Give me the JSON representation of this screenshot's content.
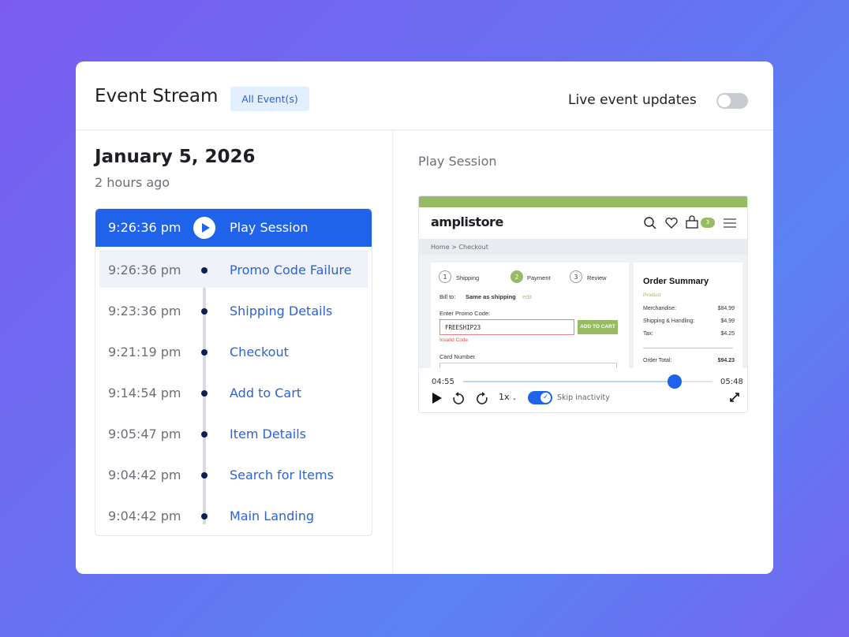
{
  "header": {
    "title": "Event Stream",
    "filter_chip": "All Event(s)",
    "live_label": "Live event updates",
    "live_enabled": false
  },
  "session": {
    "date": "January 5, 2026",
    "relative": "2 hours ago"
  },
  "events": [
    {
      "time": "9:26:36 pm",
      "label": "Play Session",
      "active": true
    },
    {
      "time": "9:26:36 pm",
      "label": "Promo Code Failure",
      "selected": true
    },
    {
      "time": "9:23:36 pm",
      "label": "Shipping Details"
    },
    {
      "time": "9:21:19 pm",
      "label": "Checkout"
    },
    {
      "time": "9:14:54 pm",
      "label": "Add to Cart"
    },
    {
      "time": "9:05:47 pm",
      "label": "Item Details"
    },
    {
      "time": "9:04:42 pm",
      "label": "Search for Items"
    },
    {
      "time": "9:04:42 pm",
      "label": "Main Landing"
    }
  ],
  "player": {
    "heading": "Play Session",
    "site": {
      "logo": "amplistore",
      "cart_count": "3",
      "breadcrumb": "Home > Checkout",
      "steps": [
        {
          "n": "1",
          "label": "Shipping"
        },
        {
          "n": "2",
          "label": "Payment"
        },
        {
          "n": "3",
          "label": "Review"
        }
      ],
      "bill_to_label": "Bill to:",
      "bill_to_value": "Same as shipping",
      "edit": "edit",
      "promo_label": "Enter Promo Code:",
      "promo_value": "FREESHIP23",
      "promo_button": "ADD TO CART",
      "promo_error": "Invalid Code",
      "card_label": "Card Number",
      "summary": {
        "title": "Order Summary",
        "product": "Product",
        "merch_label": "Merchandise:",
        "merch": "$84.99",
        "ship_label": "Shipping & Handling:",
        "ship": "$4.99",
        "tax_label": "Tax:",
        "tax": "$4.25",
        "total_label": "Order Total:",
        "total": "$94.23"
      }
    },
    "current_time": "04:55",
    "duration": "05:48",
    "progress_percent": 84.8,
    "speed": "1x",
    "skip_label": "Skip inactivity",
    "skip_enabled": true
  },
  "colors": {
    "accent": "#1f63ea",
    "store_green": "#97bb62",
    "error": "#d9534f"
  }
}
